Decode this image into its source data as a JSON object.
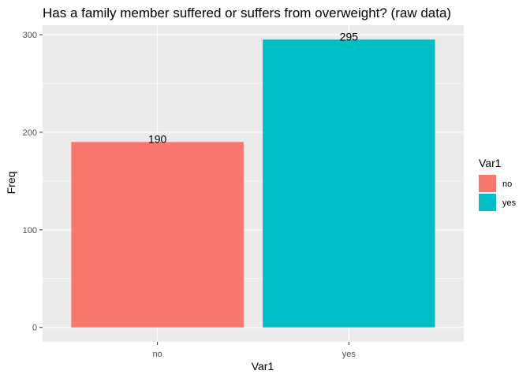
{
  "chart_data": {
    "type": "bar",
    "title": "Has a family member suffered or suffers from overweight? (raw data)",
    "xlabel": "Var1",
    "ylabel": "Freq",
    "categories": [
      "no",
      "yes"
    ],
    "values": [
      190,
      295
    ],
    "data_labels": [
      "190",
      "295"
    ],
    "colors": [
      "#F8766D",
      "#00BFC4"
    ],
    "ylim": [
      -14.75,
      309.75
    ],
    "yticks": [
      0,
      100,
      200,
      300
    ],
    "ytick_labels": [
      "0",
      "100",
      "200",
      "300"
    ],
    "grid": true,
    "legend": {
      "title": "Var1",
      "position": "right",
      "entries": [
        "no",
        "yes"
      ]
    },
    "panel_background": "#EBEBEB",
    "grid_color": "#FFFFFF"
  }
}
